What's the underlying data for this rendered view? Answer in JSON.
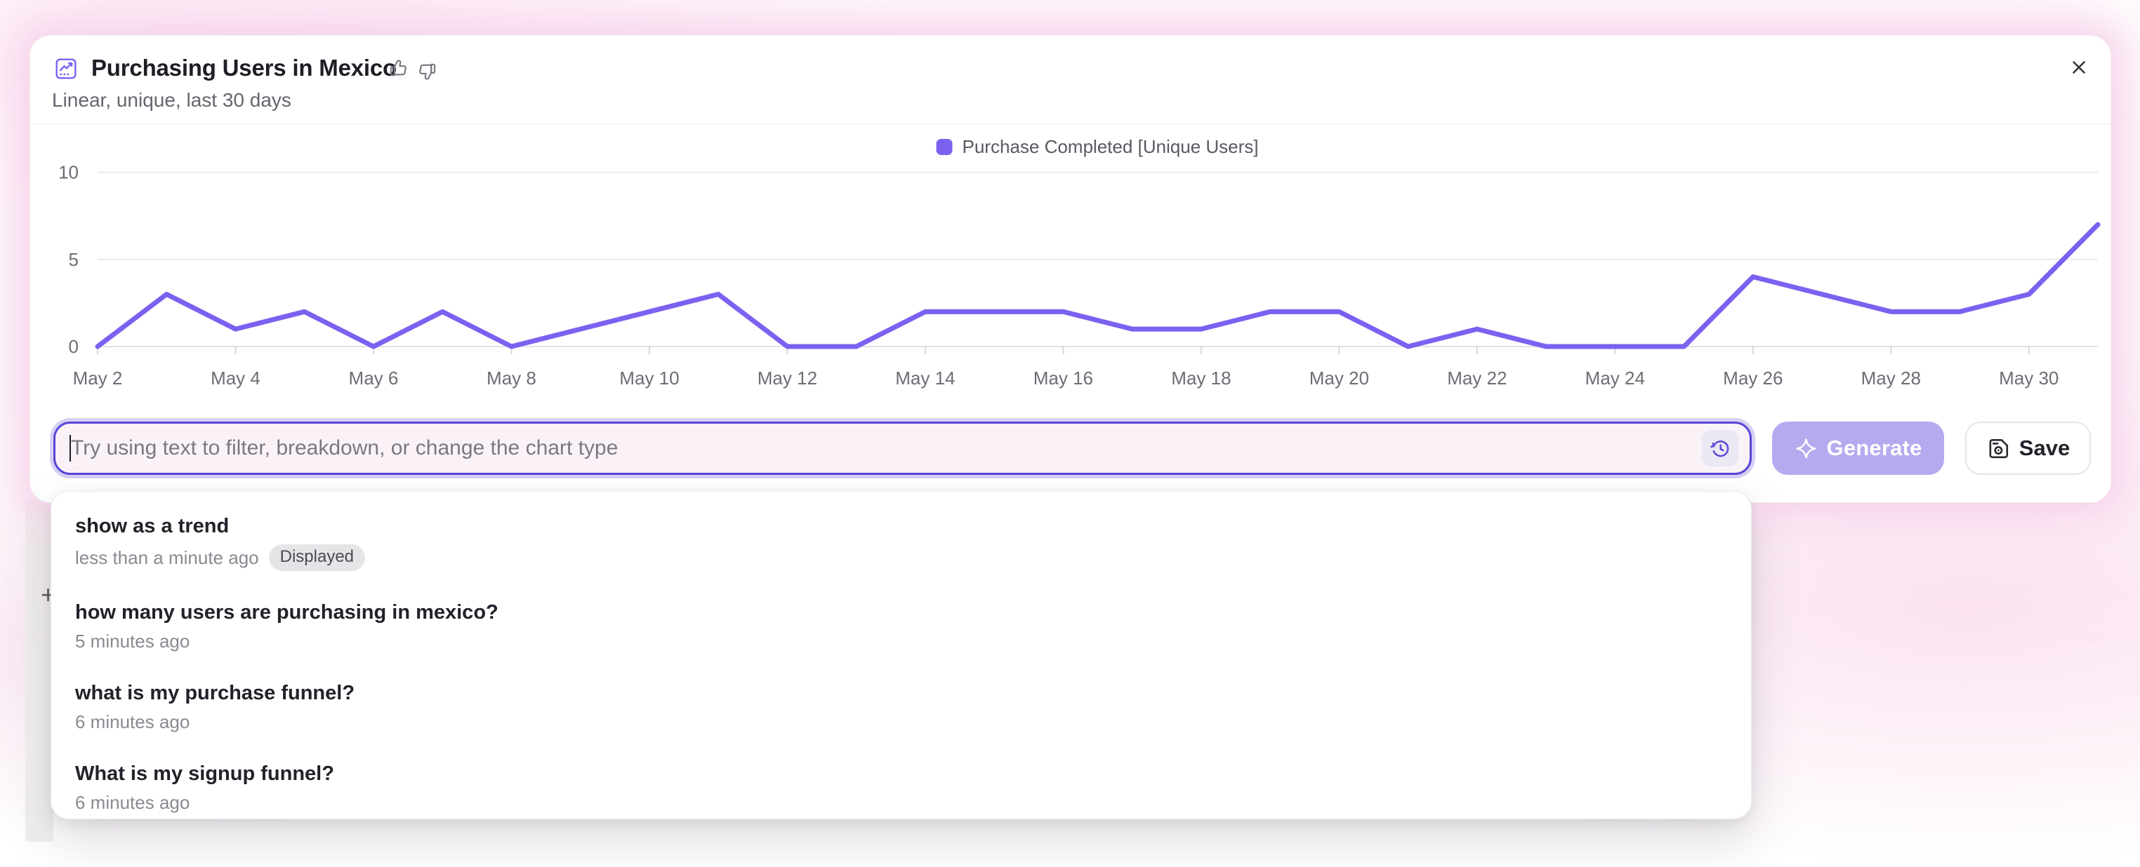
{
  "header": {
    "title": "Purchasing Users in Mexico",
    "subtitle": "Linear, unique, last 30 days"
  },
  "chart_data": {
    "type": "line",
    "title": "Purchasing Users in Mexico",
    "subtitle": "Linear, unique, last 30 days",
    "categories": [
      "May 2",
      "May 3",
      "May 4",
      "May 5",
      "May 6",
      "May 7",
      "May 8",
      "May 9",
      "May 10",
      "May 11",
      "May 12",
      "May 13",
      "May 14",
      "May 15",
      "May 16",
      "May 17",
      "May 18",
      "May 19",
      "May 20",
      "May 21",
      "May 22",
      "May 23",
      "May 24",
      "May 25",
      "May 26",
      "May 27",
      "May 28",
      "May 29",
      "May 30",
      "May 31"
    ],
    "x_tick_labels": [
      "May 2",
      "May 4",
      "May 6",
      "May 8",
      "May 10",
      "May 12",
      "May 14",
      "May 16",
      "May 18",
      "May 20",
      "May 22",
      "May 24",
      "May 26",
      "May 28",
      "May 30"
    ],
    "series": [
      {
        "name": "Purchase Completed [Unique Users]",
        "color": "#7c61f0",
        "values": [
          0,
          3,
          1,
          2,
          0,
          2,
          0,
          1,
          2,
          3,
          0,
          0,
          2,
          2,
          2,
          1,
          1,
          2,
          2,
          0,
          1,
          0,
          0,
          0,
          4,
          3,
          2,
          2,
          3,
          7
        ]
      }
    ],
    "ylim": [
      0,
      10
    ],
    "yticks": [
      0,
      5,
      10
    ],
    "grid": true,
    "legend_position": "top-center"
  },
  "query_bar": {
    "placeholder": "Try using text to filter, breakdown, or change the chart type",
    "generate_label": "Generate",
    "save_label": "Save"
  },
  "history_dropdown": {
    "items": [
      {
        "query": "show as a trend",
        "time": "less than a minute ago",
        "badge": "Displayed"
      },
      {
        "query": "how many users are purchasing in mexico?",
        "time": "5 minutes ago"
      },
      {
        "query": "what is my purchase funnel?",
        "time": "6 minutes ago"
      },
      {
        "query": "What is my signup funnel?",
        "time": "6 minutes ago"
      }
    ]
  },
  "misc": {
    "plus_glyph": "+"
  },
  "colors": {
    "accent_purple": "#7c61f0",
    "input_border": "#5847d6",
    "generate_bg": "#b5aaef",
    "glow_pink": "#f7d9ec",
    "grid_line": "#eceaee",
    "axis_label": "#6e6c75"
  }
}
